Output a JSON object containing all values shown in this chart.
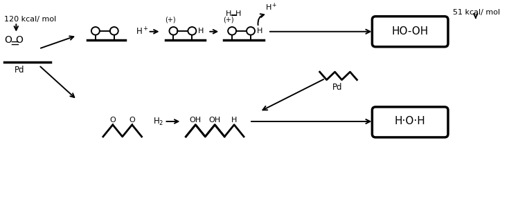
{
  "bg_color": "#ffffff",
  "figsize": [
    7.48,
    2.97
  ],
  "dpi": 100,
  "label_120": "120 kcal/ mol",
  "label_51": "51 kcal/ mol",
  "label_Pd": "Pd",
  "label_HOOH": "HO-OH",
  "label_HOH": "H·O·H"
}
